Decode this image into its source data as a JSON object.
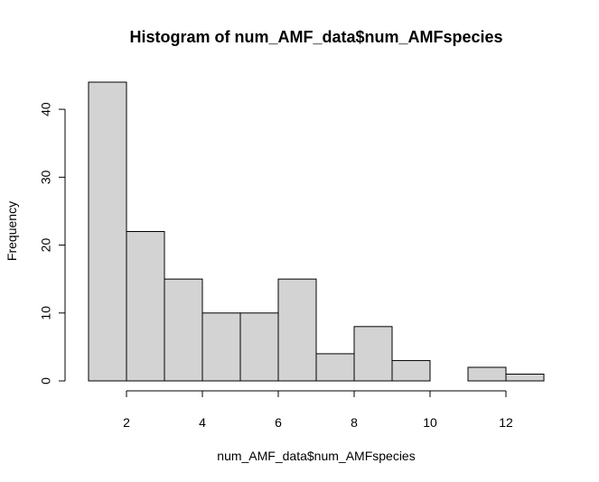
{
  "chart_data": {
    "type": "bar",
    "title": "Histogram of num_AMF_data$num_AMFspecies",
    "xlabel": "num_AMF_data$num_AMFspecies",
    "ylabel": "Frequency",
    "bins": [
      {
        "start": 1,
        "end": 2,
        "count": 44
      },
      {
        "start": 2,
        "end": 3,
        "count": 22
      },
      {
        "start": 3,
        "end": 4,
        "count": 15
      },
      {
        "start": 4,
        "end": 5,
        "count": 10
      },
      {
        "start": 5,
        "end": 6,
        "count": 10
      },
      {
        "start": 6,
        "end": 7,
        "count": 15
      },
      {
        "start": 7,
        "end": 8,
        "count": 4
      },
      {
        "start": 8,
        "end": 9,
        "count": 8
      },
      {
        "start": 9,
        "end": 10,
        "count": 3
      },
      {
        "start": 10,
        "end": 11,
        "count": 0
      },
      {
        "start": 11,
        "end": 12,
        "count": 2
      },
      {
        "start": 12,
        "end": 13,
        "count": 1
      }
    ],
    "x_ticks": [
      2,
      4,
      6,
      8,
      10,
      12
    ],
    "y_ticks": [
      0,
      10,
      20,
      30,
      40
    ],
    "xlim": [
      1,
      13
    ],
    "ylim": [
      0,
      44
    ],
    "grid": false,
    "legend": "none",
    "colors": {
      "bar_fill": "#d3d3d3",
      "bar_stroke": "#000000",
      "axis": "#000000",
      "background": "#ffffff"
    }
  }
}
